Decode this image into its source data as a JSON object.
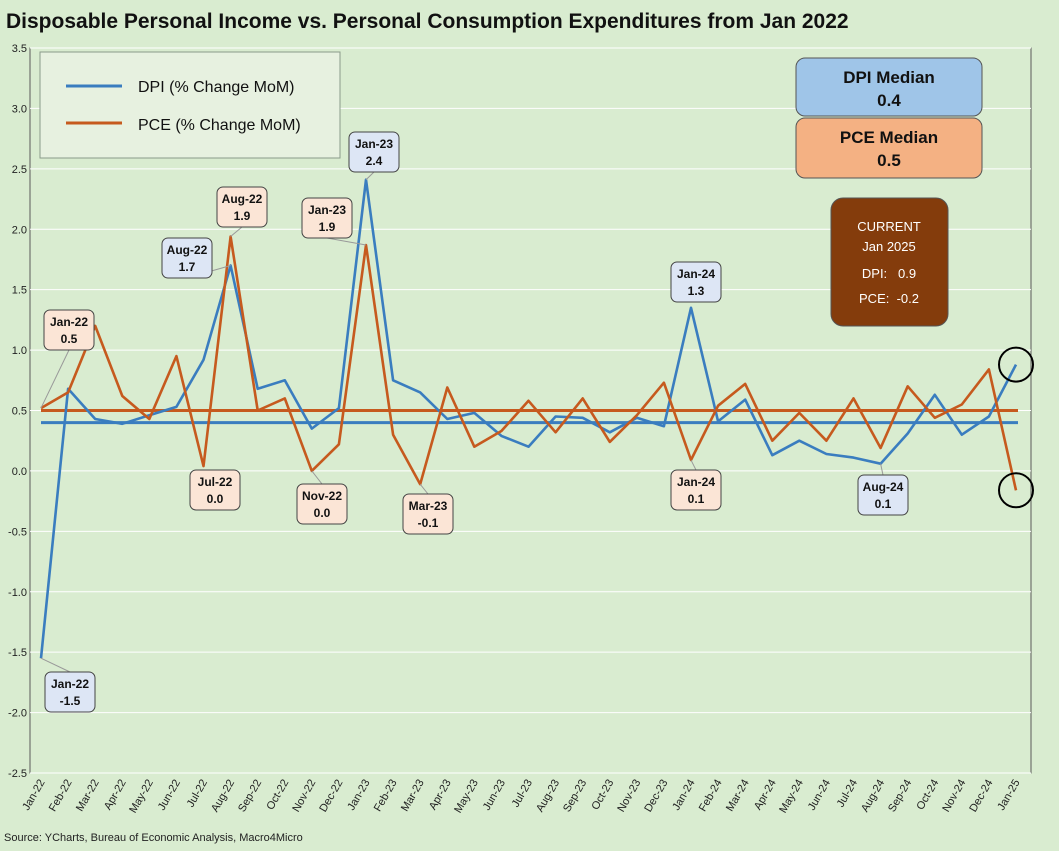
{
  "chart_data": {
    "type": "line",
    "title": "Disposable Personal Income vs. Personal Consumption Expenditures from Jan 2022",
    "source": "Source: YCharts, Bureau of Economic Analysis, Macro4Micro",
    "ylim": [
      -2.5,
      3.5
    ],
    "yticks": [
      "3.5",
      "3.0",
      "2.5",
      "2.0",
      "1.5",
      "1.0",
      "0.5",
      "0.0",
      "-0.5",
      "-1.0",
      "-1.5",
      "-2.0",
      "-2.5"
    ],
    "ytick_values": [
      3.5,
      3.0,
      2.5,
      2.0,
      1.5,
      1.0,
      0.5,
      0.0,
      -0.5,
      -1.0,
      -1.5,
      -2.0,
      -2.5
    ],
    "categories": [
      "Jan-22",
      "Feb-22",
      "Mar-22",
      "Apr-22",
      "May-22",
      "Jun-22",
      "Jul-22",
      "Aug-22",
      "Sep-22",
      "Oct-22",
      "Nov-22",
      "Dec-22",
      "Jan-23",
      "Feb-23",
      "Mar-23",
      "Apr-23",
      "May-23",
      "Jun-23",
      "Jul-23",
      "Aug-23",
      "Sep-23",
      "Oct-23",
      "Nov-23",
      "Dec-23",
      "Jan-24",
      "Feb-24",
      "Mar-24",
      "Apr-24",
      "May-24",
      "Jun-24",
      "Jul-24",
      "Aug-24",
      "Sep-24",
      "Oct-24",
      "Nov-24",
      "Dec-24",
      "Jan-25"
    ],
    "series": [
      {
        "name": "DPI (% Change MoM)",
        "color": "#3a7dbf",
        "values": [
          -1.55,
          0.68,
          0.43,
          0.39,
          0.46,
          0.53,
          0.92,
          1.7,
          0.68,
          0.75,
          0.35,
          0.52,
          2.41,
          0.75,
          0.65,
          0.43,
          0.48,
          0.29,
          0.2,
          0.45,
          0.44,
          0.32,
          0.44,
          0.37,
          1.35,
          0.41,
          0.59,
          0.13,
          0.25,
          0.14,
          0.11,
          0.06,
          0.31,
          0.63,
          0.3,
          0.45,
          0.88
        ],
        "median": 0.4
      },
      {
        "name": "PCE (% Change MoM)",
        "color": "#c65a1e",
        "values": [
          0.52,
          0.65,
          1.2,
          0.62,
          0.43,
          0.95,
          0.04,
          1.94,
          0.5,
          0.6,
          0.0,
          0.22,
          1.87,
          0.3,
          -0.11,
          0.69,
          0.2,
          0.33,
          0.58,
          0.32,
          0.6,
          0.24,
          0.46,
          0.73,
          0.09,
          0.54,
          0.72,
          0.25,
          0.48,
          0.25,
          0.6,
          0.19,
          0.7,
          0.44,
          0.55,
          0.84,
          -0.16
        ],
        "median": 0.5
      }
    ],
    "legend": [
      "DPI (% Change MoM)",
      "PCE (% Change MoM)"
    ],
    "boxes": {
      "dpi_median_title": "DPI Median",
      "dpi_median_value": "0.4",
      "pce_median_title": "PCE Median",
      "pce_median_value": "0.5",
      "current_title": "CURRENT",
      "current_period": "Jan 2025",
      "current_dpi": "DPI:   0.9",
      "current_pce": "PCE:  -0.2"
    },
    "annotations": [
      {
        "label": "Jan-22",
        "value": "0.5",
        "series": "PCE",
        "index": 0
      },
      {
        "label": "Aug-22",
        "value": "1.7",
        "series": "DPI",
        "index": 7
      },
      {
        "label": "Aug-22",
        "value": "1.9",
        "series": "PCE",
        "index": 7
      },
      {
        "label": "Jul-22",
        "value": "0.0",
        "series": "PCE",
        "index": 6
      },
      {
        "label": "Nov-22",
        "value": "0.0",
        "series": "PCE",
        "index": 10
      },
      {
        "label": "Jan-23",
        "value": "2.4",
        "series": "DPI",
        "index": 12
      },
      {
        "label": "Jan-23",
        "value": "1.9",
        "series": "PCE",
        "index": 12
      },
      {
        "label": "Mar-23",
        "value": "-0.1",
        "series": "PCE",
        "index": 14
      },
      {
        "label": "Jan-24",
        "value": "1.3",
        "series": "DPI",
        "index": 24
      },
      {
        "label": "Jan-24",
        "value": "0.1",
        "series": "PCE",
        "index": 24
      },
      {
        "label": "Aug-24",
        "value": "0.1",
        "series": "DPI",
        "index": 31
      },
      {
        "label": "Jan-22",
        "value": "-1.5",
        "series": "DPI",
        "index": 0
      }
    ]
  }
}
